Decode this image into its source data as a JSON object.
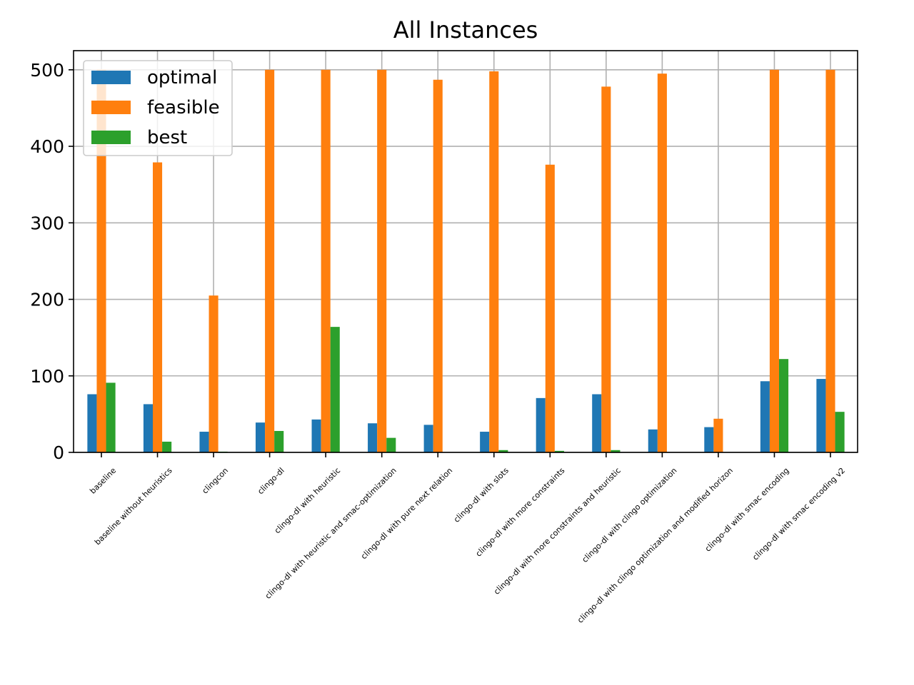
{
  "chart_data": {
    "type": "bar",
    "title": "All Instances",
    "xlabel": "",
    "ylabel": "",
    "ylim": [
      0,
      525
    ],
    "yticks": [
      0,
      100,
      200,
      300,
      400,
      500
    ],
    "grid": true,
    "legend_position": "top-left",
    "categories": [
      "baseline",
      "baseline without heuristics",
      "clingcon",
      "clingo-dl",
      "clingo-dl with heuristic",
      "clingo-dl with heuristic and smac-optimization",
      "clingo-dl with pure next relation",
      "clingo-dl with slots",
      "clingo-dl with more constraints",
      "clingo-dl with more constraints and heuristic",
      "clingo-dl with clingo optimization",
      "clingo-dl with clingo optimization and modified horizon",
      "clingo-dl with smac encoding",
      "clingo-dl with smac encoding v2"
    ],
    "series": [
      {
        "name": "optimal",
        "color": "#1f77b4",
        "values": [
          76,
          63,
          27,
          39,
          43,
          38,
          36,
          27,
          71,
          76,
          30,
          33,
          93,
          96
        ]
      },
      {
        "name": "feasible",
        "color": "#ff7f0e",
        "values": [
          500,
          379,
          205,
          500,
          500,
          500,
          487,
          498,
          376,
          478,
          495,
          44,
          500,
          500
        ]
      },
      {
        "name": "best",
        "color": "#2ca02c",
        "values": [
          91,
          14,
          1,
          28,
          164,
          19,
          0,
          3,
          2,
          3,
          0,
          0,
          122,
          53
        ]
      }
    ]
  }
}
